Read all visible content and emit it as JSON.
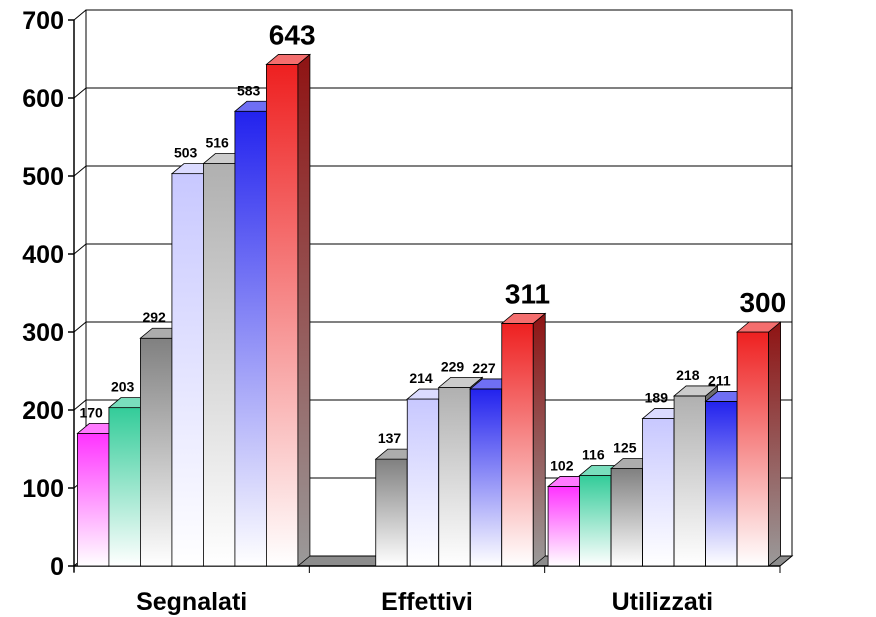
{
  "chart_data": {
    "type": "bar",
    "title": "",
    "xlabel": "",
    "ylabel": "",
    "ylim": [
      0,
      700
    ],
    "yticks": [
      0,
      100,
      200,
      300,
      400,
      500,
      600,
      700
    ],
    "grid": true,
    "legend": "none",
    "three_d": true,
    "categories": [
      "Segnalati",
      "Effettivi",
      "Utilizzati"
    ],
    "series": [
      {
        "color": "#ff33ff",
        "values": [
          170,
          null,
          102
        ]
      },
      {
        "color": "#33cc99",
        "values": [
          203,
          null,
          116
        ]
      },
      {
        "color": "#808080",
        "values": [
          292,
          137,
          125
        ]
      },
      {
        "color": "#c8c8ff",
        "values": [
          503,
          214,
          189
        ]
      },
      {
        "color": "#b0b0b0",
        "values": [
          516,
          229,
          218
        ]
      },
      {
        "color": "#2222ee",
        "values": [
          583,
          227,
          211
        ]
      },
      {
        "color": "#ee2020",
        "values": [
          643,
          311,
          300
        ]
      }
    ]
  }
}
